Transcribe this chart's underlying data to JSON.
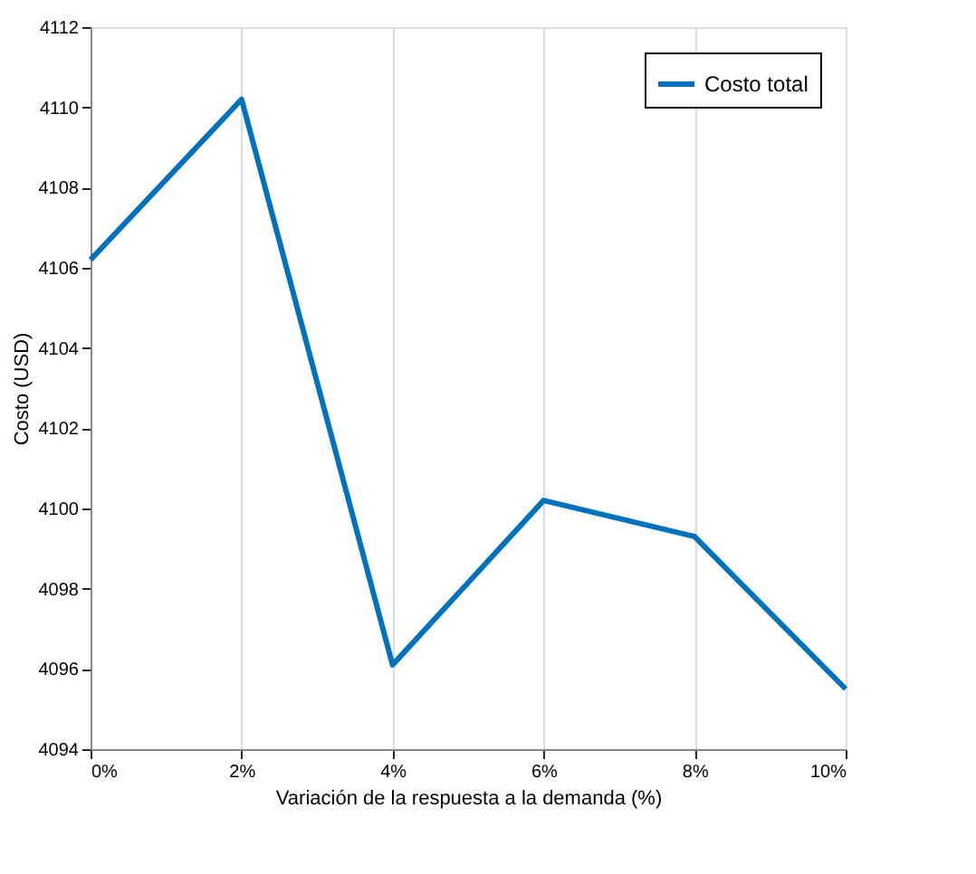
{
  "chart_data": {
    "type": "line",
    "xlabel": "Variación de la respuesta a la demanda (%)",
    "ylabel": "Costo (USD)",
    "x": [
      0,
      2,
      4,
      6,
      8,
      10
    ],
    "series": [
      {
        "name": "Costo total",
        "color": "#0072bd",
        "values": [
          4106.2,
          4110.2,
          4096.1,
          4100.2,
          4099.3,
          4095.5
        ]
      }
    ],
    "xlim": [
      0,
      10
    ],
    "xticks": [
      {
        "value": 0,
        "label": "0%"
      },
      {
        "value": 2,
        "label": "2%"
      },
      {
        "value": 4,
        "label": "4%"
      },
      {
        "value": 6,
        "label": "6%"
      },
      {
        "value": 8,
        "label": "8%"
      },
      {
        "value": 10,
        "label": "10%"
      }
    ],
    "ylim": [
      4094,
      4112
    ],
    "yticks": [
      4094,
      4096,
      4098,
      4100,
      4102,
      4104,
      4106,
      4108,
      4110,
      4112
    ],
    "grid": "x",
    "legend": "top right",
    "marker": "none",
    "line_style": "solid"
  }
}
